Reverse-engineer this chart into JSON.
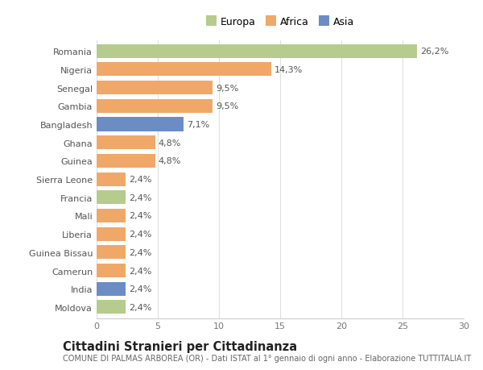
{
  "countries": [
    "Romania",
    "Nigeria",
    "Senegal",
    "Gambia",
    "Bangladesh",
    "Ghana",
    "Guinea",
    "Sierra Leone",
    "Francia",
    "Mali",
    "Liberia",
    "Guinea Bissau",
    "Camerun",
    "India",
    "Moldova"
  ],
  "values": [
    26.2,
    14.3,
    9.5,
    9.5,
    7.1,
    4.8,
    4.8,
    2.4,
    2.4,
    2.4,
    2.4,
    2.4,
    2.4,
    2.4,
    2.4
  ],
  "labels": [
    "26,2%",
    "14,3%",
    "9,5%",
    "9,5%",
    "7,1%",
    "4,8%",
    "4,8%",
    "2,4%",
    "2,4%",
    "2,4%",
    "2,4%",
    "2,4%",
    "2,4%",
    "2,4%",
    "2,4%"
  ],
  "continents": [
    "Europa",
    "Africa",
    "Africa",
    "Africa",
    "Asia",
    "Africa",
    "Africa",
    "Africa",
    "Europa",
    "Africa",
    "Africa",
    "Africa",
    "Africa",
    "Asia",
    "Europa"
  ],
  "colors": {
    "Europa": "#b5cc8e",
    "Africa": "#f0a868",
    "Asia": "#6b8dc4"
  },
  "legend_labels": [
    "Europa",
    "Africa",
    "Asia"
  ],
  "legend_colors": [
    "#b5cc8e",
    "#f0a868",
    "#6b8dc4"
  ],
  "title": "Cittadini Stranieri per Cittadinanza",
  "subtitle": "COMUNE DI PALMAS ARBOREA (OR) - Dati ISTAT al 1° gennaio di ogni anno - Elaborazione TUTTITALIA.IT",
  "xlim": [
    0,
    30
  ],
  "xticks": [
    0,
    5,
    10,
    15,
    20,
    25,
    30
  ],
  "background_color": "#ffffff",
  "bar_height": 0.75,
  "grid_color": "#e0e0e0",
  "label_fontsize": 8,
  "tick_fontsize": 8,
  "title_fontsize": 10.5,
  "subtitle_fontsize": 7
}
